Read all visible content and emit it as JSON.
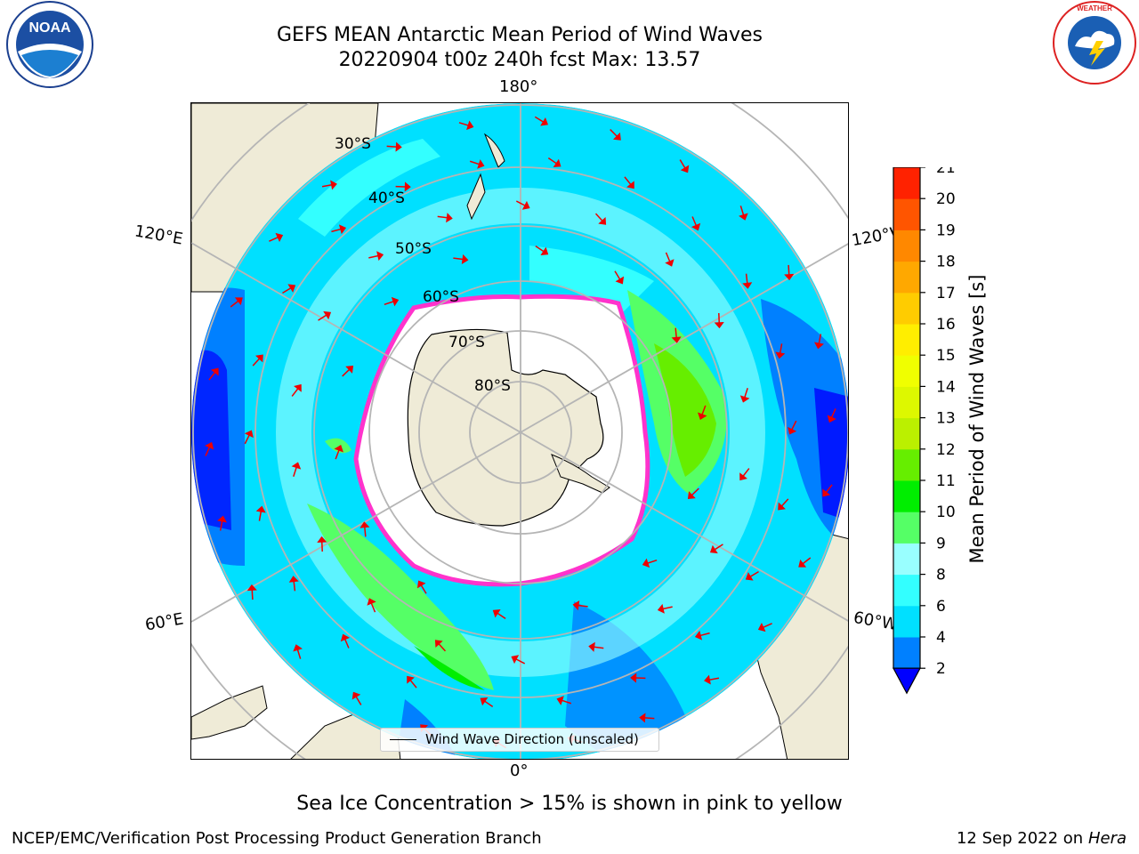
{
  "title": {
    "line1": "GEFS MEAN Antarctic Mean Period of Wind Waves",
    "line2": "20220904 t00z 240h fcst   Max: 13.57"
  },
  "map": {
    "projection": "south-polar-stereographic",
    "lon_labels": {
      "top": "180°",
      "bottom": "0°",
      "upper_left": "120°E",
      "upper_right": "120°W",
      "lower_left": "60°E",
      "lower_right": "60°W"
    },
    "lat_labels": [
      "30°S",
      "40°S",
      "50°S",
      "60°S",
      "70°S",
      "80°S"
    ],
    "legend": "Wind Wave Direction (unscaled)",
    "colors": {
      "land": "#efebd7",
      "sea_ice_outline": "#ff33cc",
      "ice_shelf_yellow": "#ffcc33",
      "arrow": "#ee0000"
    }
  },
  "colorbar": {
    "label": "Mean Period of Wind Waves [s]",
    "ticks": [
      "2",
      "4",
      "6",
      "8",
      "9",
      "10",
      "11",
      "12",
      "13",
      "14",
      "15",
      "16",
      "17",
      "18",
      "19",
      "20",
      "21"
    ],
    "colors": [
      "#0080ff",
      "#00e0ff",
      "#33ffff",
      "#99ffff",
      "#55ff66",
      "#00ee00",
      "#66ee00",
      "#bbf000",
      "#ddf800",
      "#f0ff00",
      "#ffee00",
      "#ffcc00",
      "#ffa800",
      "#ff8800",
      "#ff5500",
      "#ff2200"
    ],
    "under_color": "#0000ff"
  },
  "notes": {
    "sea_ice": "Sea Ice Concentration > 15% is shown in pink to yellow"
  },
  "footer": {
    "left": "NCEP/EMC/Verification Post Processing Product Generation Branch",
    "right_date": "12 Sep 2022 on",
    "right_host": "Hera"
  },
  "logos": {
    "left": "NOAA",
    "right": "NATIONAL WEATHER SERVICE"
  }
}
